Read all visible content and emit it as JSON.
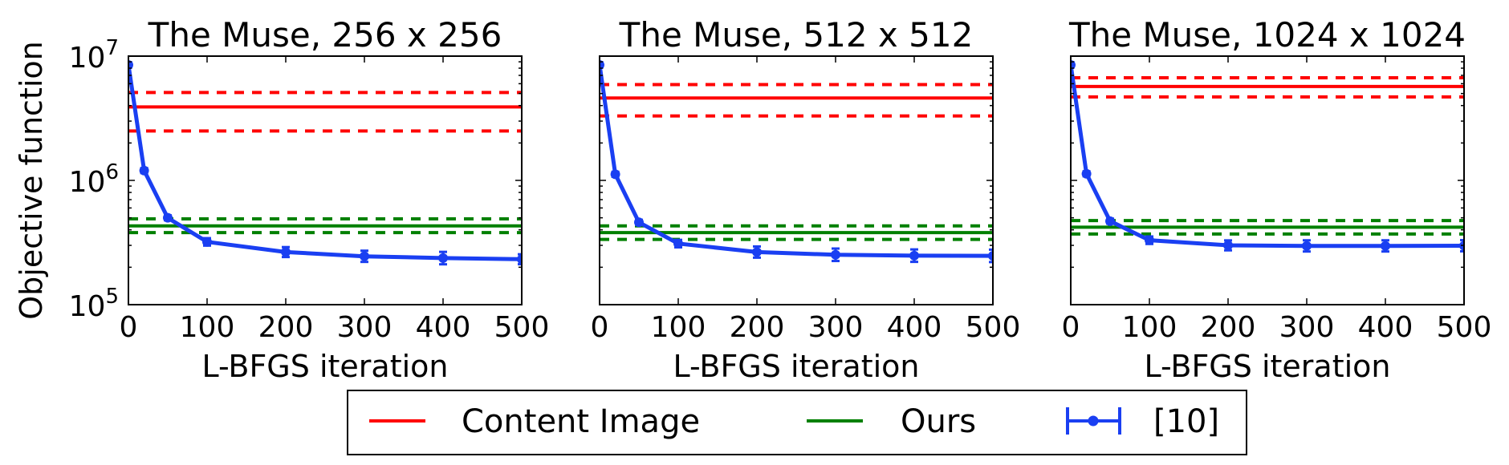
{
  "chart_data": [
    {
      "type": "line",
      "title": "The Muse, 256 x 256",
      "xlabel": "L-BFGS iteration",
      "ylabel": "Objective function",
      "xlim": [
        0,
        500
      ],
      "ylim": [
        100000,
        10000000
      ],
      "yscale": "log",
      "xticks": [
        "0",
        "100",
        "200",
        "300",
        "400",
        "500"
      ],
      "yticks": [
        {
          "base": "10",
          "exp": "5",
          "value": 100000
        },
        {
          "base": "10",
          "exp": "6",
          "value": 1000000
        },
        {
          "base": "10",
          "exp": "7",
          "value": 10000000
        }
      ],
      "series": [
        {
          "name": "Content Image",
          "kind": "hline",
          "color": "#ff0000",
          "mean": 3900000,
          "lower": 2500000,
          "upper": 5100000
        },
        {
          "name": "Ours",
          "kind": "hline",
          "color": "#008000",
          "mean": 430000,
          "lower": 380000,
          "upper": 490000
        },
        {
          "name": "[10]",
          "kind": "errorbar",
          "color": "#1a3ff2",
          "x": [
            0,
            20,
            50,
            100,
            200,
            300,
            400,
            500
          ],
          "y": [
            8500000,
            1200000,
            500000,
            320000,
            265000,
            245000,
            237000,
            232000
          ],
          "err": [
            0.02,
            0.02,
            0.02,
            0.03,
            0.04,
            0.045,
            0.05,
            0.04
          ]
        }
      ]
    },
    {
      "type": "line",
      "title": "The Muse, 512 x 512",
      "xlabel": "L-BFGS iteration",
      "ylabel": "",
      "xlim": [
        0,
        500
      ],
      "ylim": [
        100000,
        10000000
      ],
      "yscale": "log",
      "xticks": [
        "0",
        "100",
        "200",
        "300",
        "400",
        "500"
      ],
      "yticks": [],
      "series": [
        {
          "name": "Content Image",
          "kind": "hline",
          "color": "#ff0000",
          "mean": 4600000,
          "lower": 3300000,
          "upper": 5900000
        },
        {
          "name": "Ours",
          "kind": "hline",
          "color": "#008000",
          "mean": 380000,
          "lower": 335000,
          "upper": 430000
        },
        {
          "name": "[10]",
          "kind": "errorbar",
          "color": "#1a3ff2",
          "x": [
            0,
            20,
            50,
            100,
            200,
            300,
            400,
            500
          ],
          "y": [
            8500000,
            1120000,
            460000,
            310000,
            265000,
            252000,
            248000,
            247000
          ],
          "err": [
            0.02,
            0.02,
            0.02,
            0.03,
            0.045,
            0.05,
            0.05,
            0.05
          ]
        }
      ]
    },
    {
      "type": "line",
      "title": "The Muse, 1024 x 1024",
      "xlabel": "L-BFGS iteration",
      "ylabel": "",
      "xlim": [
        0,
        500
      ],
      "ylim": [
        100000,
        10000000
      ],
      "yscale": "log",
      "xticks": [
        "0",
        "100",
        "200",
        "300",
        "400",
        "500"
      ],
      "yticks": [],
      "series": [
        {
          "name": "Content Image",
          "kind": "hline",
          "color": "#ff0000",
          "mean": 5700000,
          "lower": 4700000,
          "upper": 6700000
        },
        {
          "name": "Ours",
          "kind": "hline",
          "color": "#008000",
          "mean": 420000,
          "lower": 370000,
          "upper": 475000
        },
        {
          "name": "[10]",
          "kind": "errorbar",
          "color": "#1a3ff2",
          "x": [
            0,
            20,
            50,
            100,
            200,
            300,
            400,
            500
          ],
          "y": [
            8500000,
            1130000,
            470000,
            330000,
            300000,
            297000,
            297000,
            298000
          ],
          "err": [
            0.02,
            0.02,
            0.02,
            0.03,
            0.04,
            0.045,
            0.045,
            0.045
          ]
        }
      ]
    }
  ],
  "legend": {
    "placement": "bottom-center",
    "entries": [
      {
        "label": "Content Image",
        "color": "#ff0000",
        "marker": "line"
      },
      {
        "label": "Ours",
        "color": "#008000",
        "marker": "line"
      },
      {
        "label": "[10]",
        "color": "#1a3ff2",
        "marker": "errorbar"
      }
    ]
  }
}
